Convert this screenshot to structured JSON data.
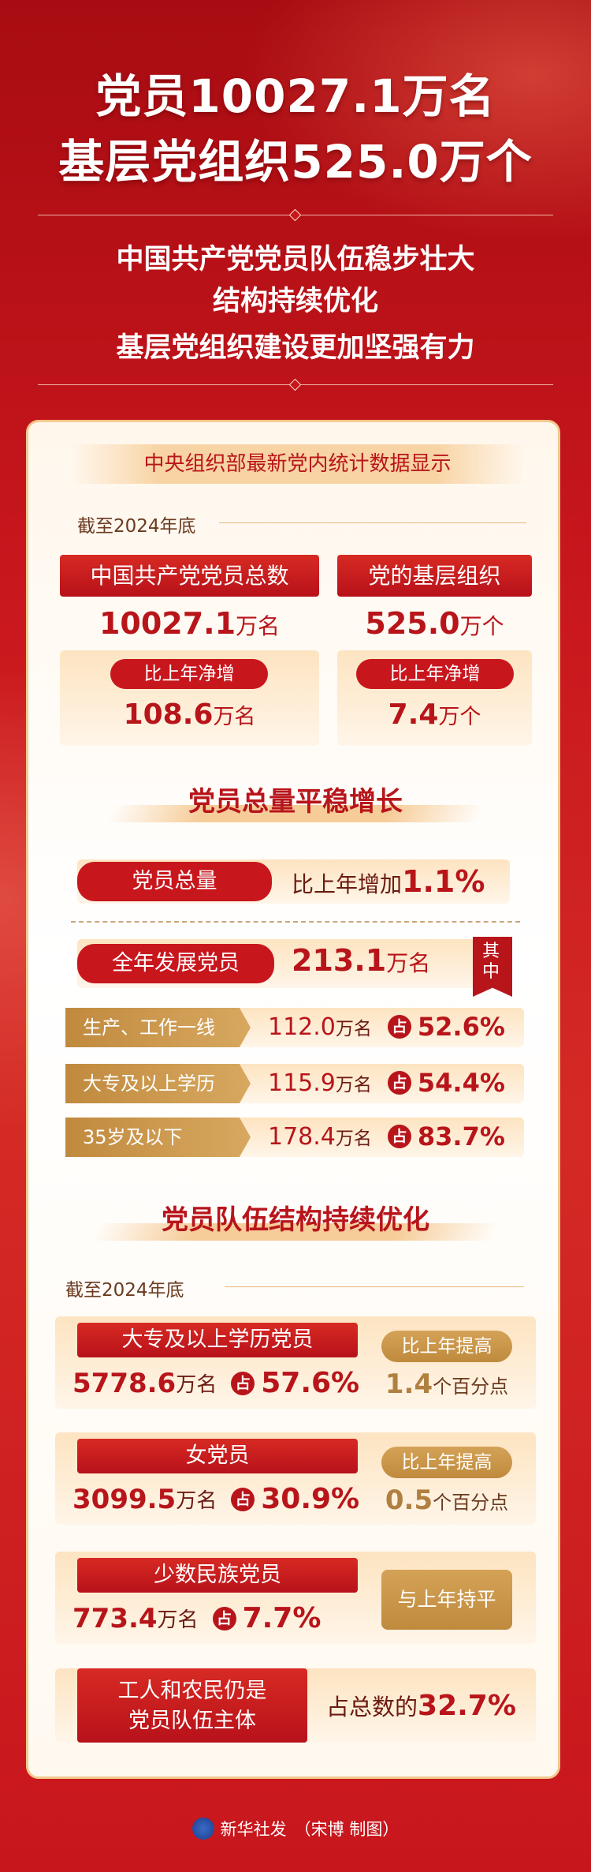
{
  "header": {
    "title_lines": [
      "党员10027.1万名",
      "基层党组织525.0万个"
    ],
    "subtitle_lines": [
      "中国共产党党员队伍稳步壮大",
      "结构持续优化",
      "基层党组织建设更加坚强有力"
    ]
  },
  "panel": {
    "banner": "中央组织部最新党内统计数据显示",
    "as_of": "截至2024年底",
    "share_prefix": "占",
    "totals": [
      {
        "label": "中国共产党党员总数",
        "value": "10027.1",
        "unit": "万名",
        "increase_label": "比上年净增",
        "increase": "108.6",
        "increase_unit": "万名"
      },
      {
        "label": "党的基层组织",
        "value": "525.0",
        "unit": "万个",
        "increase_label": "比上年净增",
        "increase": "7.4",
        "increase_unit": "万个"
      }
    ],
    "section1": {
      "title": "党员总量平稳增长",
      "total_label": "党员总量",
      "growth_text": "比上年增加",
      "growth": "1.1%",
      "developed_label": "全年发展党员",
      "developed": "213.1",
      "developed_unit": "万名",
      "note": "其中",
      "rows": [
        {
          "label": "生产、工作一线",
          "value": "112.0",
          "unit": "万名",
          "share": "52.6%"
        },
        {
          "label": "大专及以上学历",
          "value": "115.9",
          "unit": "万名",
          "share": "54.4%"
        },
        {
          "label": "35岁及以下",
          "value": "178.4",
          "unit": "万名",
          "share": "83.7%"
        }
      ]
    },
    "section2": {
      "title": "党员队伍结构持续优化",
      "as_of": "截至2024年底",
      "groups": [
        {
          "label": "大专及以上学历党员",
          "value": "5778.6",
          "unit": "万名",
          "share": "57.6%",
          "change_label": "比上年提高",
          "change": "1.4",
          "change_unit": "个百分点"
        },
        {
          "label": "女党员",
          "value": "3099.5",
          "unit": "万名",
          "share": "30.9%",
          "change_label": "比上年提高",
          "change": "0.5",
          "change_unit": "个百分点"
        },
        {
          "label": "少数民族党员",
          "value": "773.4",
          "unit": "万名",
          "share": "7.7%",
          "change_label": "与上年持平"
        }
      ],
      "footer_box": {
        "label_lines": [
          "工人和农民仍是",
          "党员队伍主体"
        ],
        "text": "占总数的",
        "share": "32.7%"
      }
    }
  },
  "credit": {
    "agency": "新华社发",
    "author": "（宋博 制图）"
  }
}
